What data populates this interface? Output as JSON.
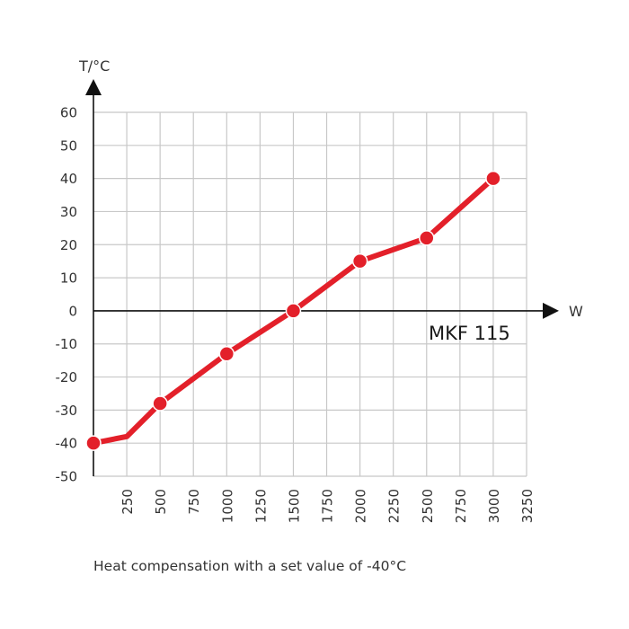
{
  "chart_data": {
    "type": "line",
    "xlabel": "W",
    "ylabel": "T/°C",
    "x_ticks": [
      250,
      500,
      750,
      1000,
      1250,
      1500,
      1750,
      2000,
      2250,
      2500,
      2750,
      3000,
      3250
    ],
    "y_ticks": [
      60,
      50,
      40,
      30,
      20,
      10,
      0,
      -10,
      -20,
      -30,
      -40,
      -50
    ],
    "xlim": [
      0,
      3250
    ],
    "ylim": [
      -50,
      60
    ],
    "grid": true,
    "series": [
      {
        "name": "MKF 115",
        "color": "#e3202a",
        "x": [
          0,
          250,
          500,
          1000,
          1500,
          2000,
          2500,
          3000
        ],
        "y": [
          -40,
          -38,
          -28,
          -13,
          0,
          15,
          22,
          40
        ],
        "markers": [
          true,
          false,
          true,
          true,
          true,
          true,
          true,
          true
        ]
      }
    ],
    "caption": "Heat compensation with a set value of -40°C"
  }
}
